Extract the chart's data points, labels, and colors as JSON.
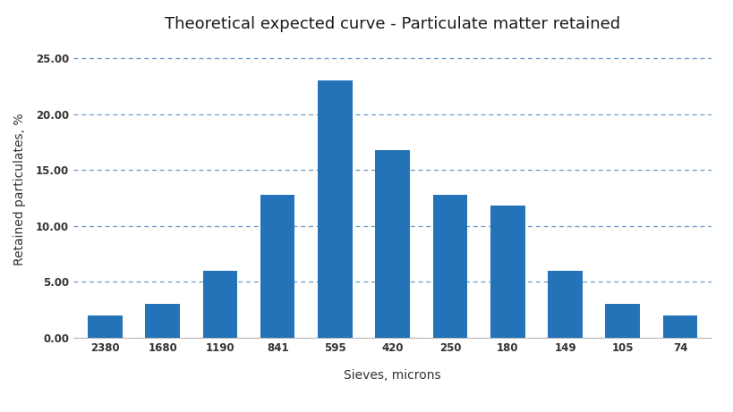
{
  "title": "Theoretical expected curve - Particulate matter retained",
  "xlabel": "Sieves, microns",
  "ylabel": "Retained particulates, %",
  "categories": [
    "2380",
    "1680",
    "1190",
    "841",
    "595",
    "420",
    "250",
    "180",
    "149",
    "105",
    "74"
  ],
  "values": [
    2.0,
    3.0,
    6.0,
    12.8,
    23.0,
    16.8,
    12.8,
    11.8,
    6.0,
    3.0,
    2.0
  ],
  "bar_color": "#2472B8",
  "background_color": "#ffffff",
  "ylim": [
    0,
    26.5
  ],
  "yticks": [
    0.0,
    5.0,
    10.0,
    15.0,
    20.0,
    25.0
  ],
  "grid_color": "#5B8FBE",
  "title_fontsize": 13,
  "label_fontsize": 10,
  "tick_fontsize": 8.5
}
